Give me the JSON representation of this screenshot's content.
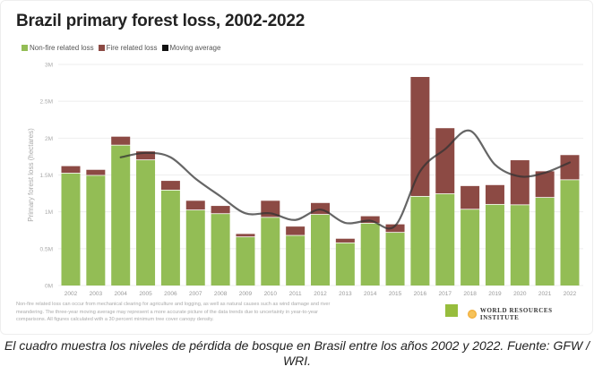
{
  "chart_data": {
    "type": "bar",
    "stacked": true,
    "title": "Brazil primary forest loss, 2002-2022",
    "ylabel": "Primary forest loss (hectares)",
    "xlabel": "",
    "ylim": [
      0,
      3000000
    ],
    "yticks": [
      0,
      500000,
      1000000,
      1500000,
      2000000,
      2500000,
      3000000
    ],
    "ytick_labels": [
      "0M",
      "0.5M",
      "1M",
      "1.5M",
      "2M",
      "2.5M",
      "3M"
    ],
    "grid": true,
    "legend_placement": "top-left",
    "categories": [
      "2002",
      "2003",
      "2004",
      "2005",
      "2006",
      "2007",
      "2008",
      "2009",
      "2010",
      "2011",
      "2012",
      "2013",
      "2014",
      "2015",
      "2016",
      "2017",
      "2018",
      "2019",
      "2020",
      "2021",
      "2022"
    ],
    "series": [
      {
        "name": "Non-fire related loss",
        "color": "#93bd55",
        "values": [
          1520000,
          1490000,
          1900000,
          1700000,
          1290000,
          1020000,
          970000,
          655000,
          920000,
          675000,
          960000,
          574000,
          840000,
          716000,
          1205000,
          1240000,
          1030000,
          1096000,
          1090000,
          1190000,
          1430000
        ]
      },
      {
        "name": "Fire related loss",
        "color": "#8c4a44",
        "values": [
          100000,
          80000,
          120000,
          120000,
          130000,
          130000,
          110000,
          45000,
          230000,
          125000,
          160000,
          61000,
          100000,
          114000,
          1625000,
          895000,
          320000,
          267000,
          610000,
          360000,
          340000
        ]
      },
      {
        "name": "Moving average",
        "color": "#333333",
        "type": "line",
        "x": [
          "2004",
          "2005",
          "2006",
          "2007",
          "2008",
          "2009",
          "2010",
          "2011",
          "2012",
          "2013",
          "2014",
          "2015",
          "2016",
          "2017",
          "2018",
          "2019",
          "2020",
          "2021",
          "2022"
        ],
        "values": [
          1740000,
          1800000,
          1740000,
          1450000,
          1210000,
          980000,
          980000,
          890000,
          1030000,
          850000,
          880000,
          810000,
          1550000,
          1850000,
          2100000,
          1640000,
          1480000,
          1530000,
          1670000
        ]
      }
    ]
  },
  "footnote": "Non-fire related loss can occur from mechanical clearing for agriculture and logging, as well as natural causes such as wind damage and river meandering. The three-year moving average may represent a more accurate picture of the data trends due to uncertainty in year-to-year comparisons. All figures calculated with a 30 percent minimum tree cover canopy density.",
  "logos": {
    "gfw": "GLOBAL FOREST WATCH",
    "wri": "WORLD RESOURCES INSTITUTE"
  },
  "caption": "El cuadro muestra los niveles de pérdida de bosque en Brasil entre los años 2002 y 2022. Fuente: GFW / WRI."
}
